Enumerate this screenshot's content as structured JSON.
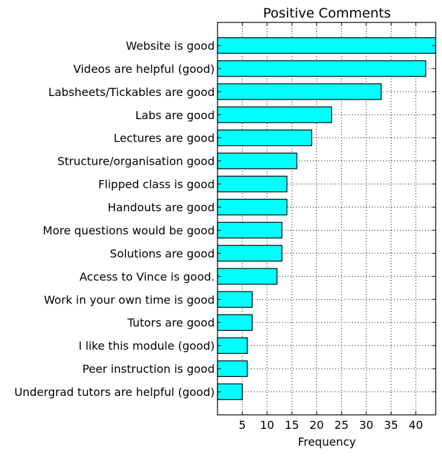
{
  "chart_data": {
    "type": "bar",
    "orientation": "horizontal",
    "title": "Positive Comments",
    "xlabel": "Frequency",
    "ylabel": "",
    "categories": [
      "Website is good",
      "Videos are helpful (good)",
      "Labsheets/Tickables are good",
      "Labs are good",
      "Lectures are good",
      "Structure/organisation good",
      "Flipped class is good",
      "Handouts are good",
      "More questions would be good",
      "Solutions are good",
      "Access to Vince is good.",
      "Work in your own time is good",
      "Tutors are good",
      "I like this module (good)",
      "Peer instruction is good",
      "Undergrad tutors are helpful (good)"
    ],
    "values": [
      44,
      42,
      33,
      23,
      19,
      16,
      14,
      14,
      13,
      13,
      12,
      7,
      7,
      6,
      6,
      5
    ],
    "xlim": [
      0,
      44
    ],
    "xticks": [
      5,
      10,
      15,
      20,
      25,
      30,
      35,
      40
    ],
    "grid": true,
    "colors": {
      "bar_fill": "#00ffff",
      "bar_edge": "#000000",
      "grid": "#000000",
      "axes": "#000000"
    }
  }
}
